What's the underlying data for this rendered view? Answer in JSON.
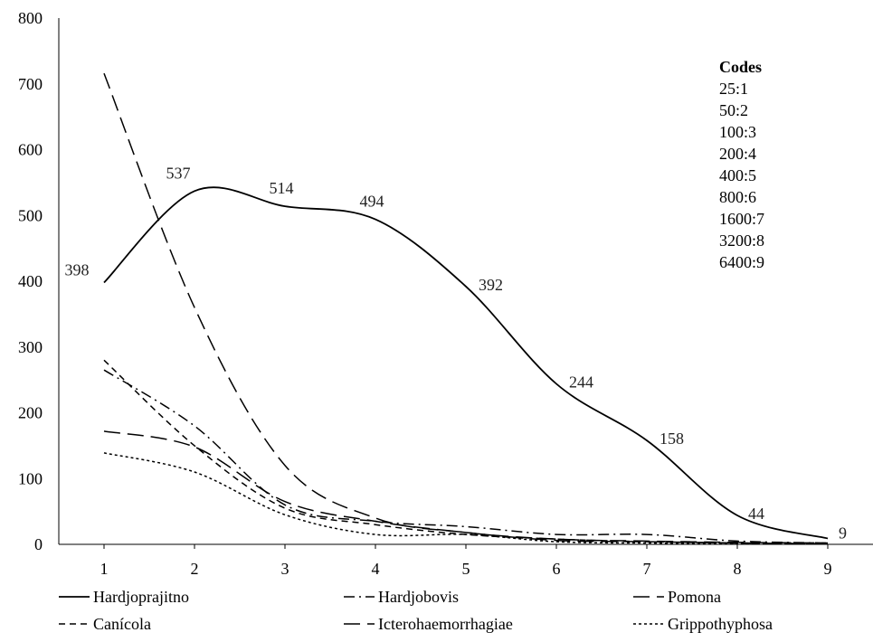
{
  "chart_data": {
    "type": "line",
    "x": [
      1,
      2,
      3,
      4,
      5,
      6,
      7,
      8,
      9
    ],
    "ylim": [
      0,
      800
    ],
    "yticks": [
      0,
      100,
      200,
      300,
      400,
      500,
      600,
      700,
      800
    ],
    "grid": false,
    "legend_position": "bottom",
    "series": [
      {
        "name": "Hardjoprajitno",
        "dash": "solid",
        "values": [
          398,
          537,
          514,
          494,
          392,
          244,
          158,
          44,
          9
        ],
        "data_labels": [
          "398",
          "537",
          "514",
          "494",
          "392",
          "244",
          "158",
          "44",
          "9"
        ]
      },
      {
        "name": "Hardjobovis",
        "dash": "dashdot",
        "values": [
          265,
          180,
          60,
          35,
          27,
          15,
          15,
          5,
          2
        ]
      },
      {
        "name": "Pomona",
        "dash": "longdash",
        "values": [
          716,
          360,
          120,
          40,
          18,
          8,
          5,
          3,
          2
        ]
      },
      {
        "name": "Canícola",
        "dash": "dash",
        "values": [
          280,
          150,
          55,
          30,
          15,
          8,
          4,
          2,
          1
        ]
      },
      {
        "name": "Icterohaemorrhagiae",
        "dash": "longdash",
        "values": [
          172,
          148,
          65,
          35,
          18,
          6,
          4,
          2,
          1
        ]
      },
      {
        "name": "Grippothyphosa",
        "dash": "dot",
        "values": [
          139,
          110,
          45,
          15,
          15,
          4,
          2,
          1,
          1
        ]
      }
    ],
    "codes": {
      "title": "Codes",
      "entries": [
        "25:1",
        "50:2",
        "100:3",
        "200:4",
        "400:5",
        "800:6",
        "1600:7",
        "3200:8",
        "6400:9"
      ]
    }
  }
}
